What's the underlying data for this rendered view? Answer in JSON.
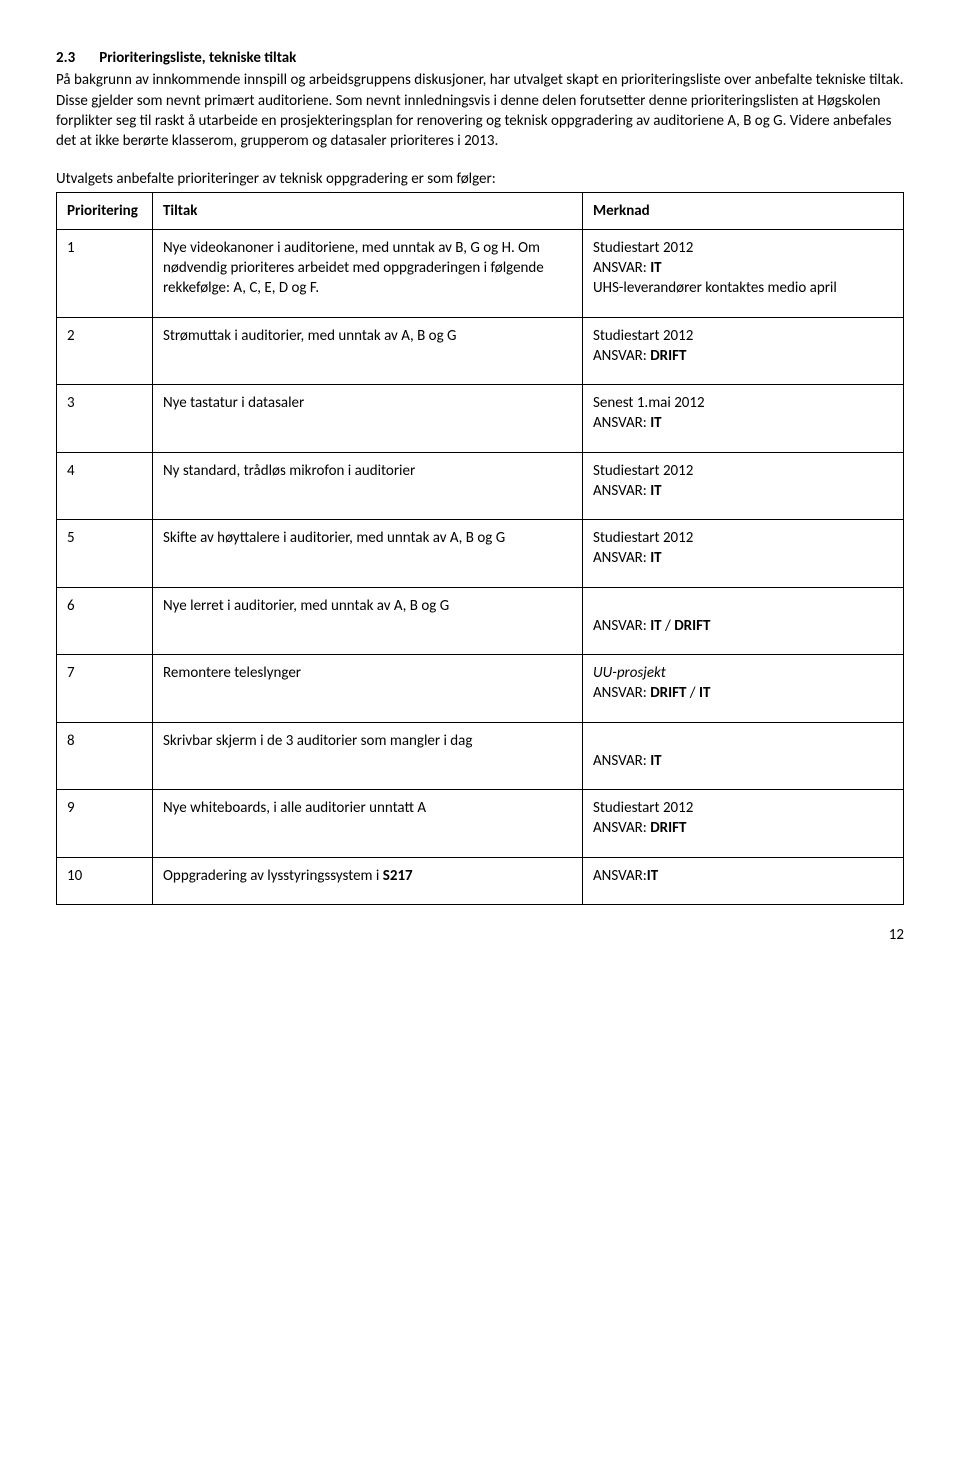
{
  "heading": {
    "number": "2.3",
    "title": "Prioriteringsliste, tekniske tiltak"
  },
  "paragraph": "På bakgrunn av innkommende innspill og arbeidsgruppens diskusjoner, har utvalget skapt en prioriteringsliste over anbefalte tekniske tiltak. Disse gjelder som nevnt primært auditoriene. Som nevnt innledningsvis i denne delen forutsetter denne prioriteringslisten at Høgskolen forplikter seg til raskt å utarbeide en prosjekteringsplan for renovering og teknisk oppgradering av auditoriene A, B og G. Videre anbefales det at ikke berørte klasserom, grupperom og datasaler prioriteres i 2013.",
  "introLine": "Utvalgets anbefalte prioriteringer av teknisk oppgradering er som følger:",
  "headers": {
    "prio": "Prioritering",
    "tiltak": "Tiltak",
    "merk": "Merknad"
  },
  "rows": [
    {
      "n": "1",
      "tiltak": "Nye videokanoner i auditoriene, med unntak av B, G og H. Om nødvendig prioriteres arbeidet med oppgraderingen i følgende rekkefølge: A, C, E, D og F.",
      "merk_lines": [
        {
          "text": "Studiestart 2012"
        },
        {
          "prefix": "ANSVAR: ",
          "bold": "IT"
        },
        {
          "text": "UHS-leverandører kontaktes medio april"
        }
      ]
    },
    {
      "n": "2",
      "tiltak": "Strømuttak i auditorier, med unntak av A, B og G",
      "merk_lines": [
        {
          "text": "Studiestart 2012"
        },
        {
          "prefix": "ANSVAR: ",
          "bold": "DRIFT"
        }
      ]
    },
    {
      "n": "3",
      "tiltak": "Nye tastatur i datasaler",
      "merk_lines": [
        {
          "text": "Senest 1.mai 2012"
        },
        {
          "prefix": "ANSVAR: ",
          "bold": "IT"
        }
      ]
    },
    {
      "n": "4",
      "tiltak": "Ny standard, trådløs mikrofon i auditorier",
      "merk_lines": [
        {
          "text": "Studiestart 2012"
        },
        {
          "prefix": "ANSVAR: ",
          "bold": "IT"
        }
      ]
    },
    {
      "n": "5",
      "tiltak": "Skifte av høyttalere i auditorier, med unntak av A, B og G",
      "merk_lines": [
        {
          "text": "Studiestart 2012"
        },
        {
          "prefix": "ANSVAR: ",
          "bold": "IT"
        }
      ]
    },
    {
      "n": "6",
      "tiltak": "Nye lerret i auditorier, med unntak av A, B og G",
      "merk_lines": [
        {
          "text": ""
        },
        {
          "prefix": "ANSVAR: ",
          "bold": "IT",
          "suffix": " / ",
          "bold2": "DRIFT"
        }
      ]
    },
    {
      "n": "7",
      "tiltak": "Remontere teleslynger",
      "merk_lines": [
        {
          "italic": "UU-prosjekt"
        },
        {
          "prefix": "ANSVAR: ",
          "bold": "DRIFT",
          "suffix": " / ",
          "bold2": "IT"
        }
      ]
    },
    {
      "n": "8",
      "tiltak": "Skrivbar skjerm i de 3 auditorier som mangler i dag",
      "merk_lines": [
        {
          "text": ""
        },
        {
          "prefix": "ANSVAR: ",
          "bold": "IT"
        }
      ]
    },
    {
      "n": "9",
      "tiltak": "Nye whiteboards, i alle auditorier unntatt A",
      "merk_lines": [
        {
          "text": "Studiestart 2012"
        },
        {
          "prefix": "ANSVAR: ",
          "bold": "DRIFT"
        }
      ]
    },
    {
      "n": "10",
      "tiltak_prefix": "Oppgradering av lysstyringssystem i ",
      "tiltak_bold": "S217",
      "merk_lines": [
        {
          "prefix": "ANSVAR:",
          "bold": "IT"
        }
      ]
    }
  ],
  "pageNumber": "12"
}
